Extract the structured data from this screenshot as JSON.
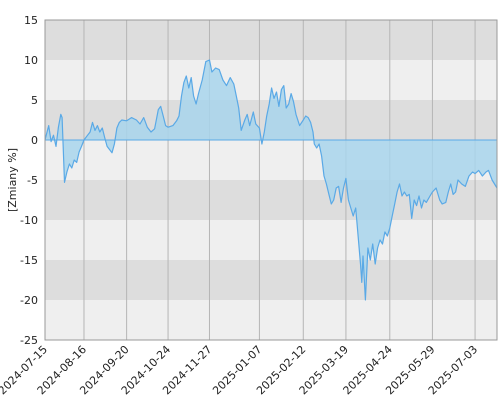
{
  "chart_data": {
    "type": "area",
    "title": "",
    "xlabel": "",
    "ylabel": "[Zmiany %]",
    "ylim": [
      -25,
      15
    ],
    "yticks": [
      15,
      10,
      5,
      0,
      -5,
      -10,
      -15,
      -20,
      -25
    ],
    "x_range": [
      "2024-07-15",
      "2025-07-21"
    ],
    "xticks": [
      "2024-07-15",
      "2024-08-16",
      "2024-09-20",
      "2024-10-24",
      "2024-11-27",
      "2025-01-07",
      "2025-02-12",
      "2025-03-19",
      "2025-04-24",
      "2025-05-29",
      "2025-07-03"
    ],
    "grid": true,
    "band_colors": [
      "#dddddd",
      "#efefef"
    ],
    "line_color": "#5aa9e6",
    "fill_color": "#a8d5ec",
    "series": [
      {
        "points": [
          [
            "2024-07-15",
            0.0
          ],
          [
            "2024-07-18",
            1.8
          ],
          [
            "2024-07-20",
            -0.2
          ],
          [
            "2024-07-22",
            0.6
          ],
          [
            "2024-07-24",
            -0.8
          ],
          [
            "2024-07-26",
            1.6
          ],
          [
            "2024-07-28",
            3.2
          ],
          [
            "2024-07-29",
            2.8
          ],
          [
            "2024-07-31",
            -5.3
          ],
          [
            "2024-08-02",
            -4.0
          ],
          [
            "2024-08-04",
            -3.0
          ],
          [
            "2024-08-06",
            -3.5
          ],
          [
            "2024-08-08",
            -2.5
          ],
          [
            "2024-08-10",
            -2.8
          ],
          [
            "2024-08-12",
            -1.5
          ],
          [
            "2024-08-14",
            -0.8
          ],
          [
            "2024-08-16",
            0.0
          ],
          [
            "2024-08-19",
            0.6
          ],
          [
            "2024-08-21",
            1.0
          ],
          [
            "2024-08-23",
            2.2
          ],
          [
            "2024-08-25",
            1.2
          ],
          [
            "2024-08-27",
            1.8
          ],
          [
            "2024-08-29",
            1.0
          ],
          [
            "2024-08-31",
            1.5
          ],
          [
            "2024-09-02",
            0.3
          ],
          [
            "2024-09-04",
            -0.8
          ],
          [
            "2024-09-06",
            -1.2
          ],
          [
            "2024-09-08",
            -1.6
          ],
          [
            "2024-09-10",
            -0.5
          ],
          [
            "2024-09-12",
            1.5
          ],
          [
            "2024-09-14",
            2.2
          ],
          [
            "2024-09-16",
            2.5
          ],
          [
            "2024-09-20",
            2.4
          ],
          [
            "2024-09-24",
            2.8
          ],
          [
            "2024-09-28",
            2.5
          ],
          [
            "2024-10-01",
            2.0
          ],
          [
            "2024-10-04",
            2.8
          ],
          [
            "2024-10-07",
            1.6
          ],
          [
            "2024-10-10",
            1.0
          ],
          [
            "2024-10-13",
            1.4
          ],
          [
            "2024-10-16",
            3.8
          ],
          [
            "2024-10-18",
            4.2
          ],
          [
            "2024-10-20",
            3.0
          ],
          [
            "2024-10-22",
            1.8
          ],
          [
            "2024-10-24",
            1.6
          ],
          [
            "2024-10-28",
            1.8
          ],
          [
            "2024-10-31",
            2.4
          ],
          [
            "2024-11-02",
            3.0
          ],
          [
            "2024-11-04",
            5.5
          ],
          [
            "2024-11-06",
            7.2
          ],
          [
            "2024-11-08",
            8.0
          ],
          [
            "2024-11-10",
            6.5
          ],
          [
            "2024-11-12",
            7.8
          ],
          [
            "2024-11-14",
            5.5
          ],
          [
            "2024-11-16",
            4.5
          ],
          [
            "2024-11-18",
            5.8
          ],
          [
            "2024-11-21",
            7.5
          ],
          [
            "2024-11-24",
            9.8
          ],
          [
            "2024-11-27",
            10.0
          ],
          [
            "2024-11-29",
            8.5
          ],
          [
            "2024-12-02",
            9.0
          ],
          [
            "2024-12-05",
            8.8
          ],
          [
            "2024-12-08",
            7.5
          ],
          [
            "2024-12-11",
            6.8
          ],
          [
            "2024-12-14",
            7.8
          ],
          [
            "2024-12-17",
            7.0
          ],
          [
            "2024-12-19",
            5.5
          ],
          [
            "2024-12-21",
            4.0
          ],
          [
            "2024-12-23",
            1.2
          ],
          [
            "2024-12-26",
            2.5
          ],
          [
            "2024-12-28",
            3.2
          ],
          [
            "2024-12-30",
            1.8
          ],
          [
            "2025-01-02",
            3.5
          ],
          [
            "2025-01-04",
            2.0
          ],
          [
            "2025-01-07",
            1.5
          ],
          [
            "2025-01-09",
            -0.5
          ],
          [
            "2025-01-11",
            1.0
          ],
          [
            "2025-01-13",
            3.0
          ],
          [
            "2025-01-15",
            4.5
          ],
          [
            "2025-01-17",
            6.5
          ],
          [
            "2025-01-19",
            5.2
          ],
          [
            "2025-01-21",
            6.0
          ],
          [
            "2025-01-23",
            4.2
          ],
          [
            "2025-01-25",
            6.3
          ],
          [
            "2025-01-27",
            6.8
          ],
          [
            "2025-01-29",
            4.0
          ],
          [
            "2025-01-31",
            4.5
          ],
          [
            "2025-02-02",
            5.8
          ],
          [
            "2025-02-04",
            4.8
          ],
          [
            "2025-02-06",
            3.2
          ],
          [
            "2025-02-09",
            1.8
          ],
          [
            "2025-02-12",
            2.5
          ],
          [
            "2025-02-14",
            3.0
          ],
          [
            "2025-02-16",
            2.8
          ],
          [
            "2025-02-18",
            2.2
          ],
          [
            "2025-02-20",
            1.0
          ],
          [
            "2025-02-21",
            -0.5
          ],
          [
            "2025-02-23",
            -1.0
          ],
          [
            "2025-02-25",
            -0.5
          ],
          [
            "2025-02-27",
            -2.0
          ],
          [
            "2025-03-01",
            -4.5
          ],
          [
            "2025-03-03",
            -5.5
          ],
          [
            "2025-03-05",
            -6.8
          ],
          [
            "2025-03-07",
            -8.0
          ],
          [
            "2025-03-09",
            -7.5
          ],
          [
            "2025-03-11",
            -6.0
          ],
          [
            "2025-03-13",
            -5.8
          ],
          [
            "2025-03-15",
            -7.8
          ],
          [
            "2025-03-17",
            -6.0
          ],
          [
            "2025-03-19",
            -4.8
          ],
          [
            "2025-03-21",
            -7.5
          ],
          [
            "2025-03-23",
            -8.5
          ],
          [
            "2025-03-25",
            -9.5
          ],
          [
            "2025-03-27",
            -8.5
          ],
          [
            "2025-03-29",
            -12.0
          ],
          [
            "2025-03-31",
            -15.5
          ],
          [
            "2025-04-01",
            -17.8
          ],
          [
            "2025-04-02",
            -14.5
          ],
          [
            "2025-04-04",
            -20.0
          ],
          [
            "2025-04-06",
            -13.5
          ],
          [
            "2025-04-08",
            -15.0
          ],
          [
            "2025-04-10",
            -13.0
          ],
          [
            "2025-04-12",
            -15.5
          ],
          [
            "2025-04-14",
            -13.5
          ],
          [
            "2025-04-16",
            -12.5
          ],
          [
            "2025-04-18",
            -13.0
          ],
          [
            "2025-04-20",
            -11.5
          ],
          [
            "2025-04-22",
            -12.0
          ],
          [
            "2025-04-24",
            -11.0
          ],
          [
            "2025-04-26",
            -9.5
          ],
          [
            "2025-04-28",
            -8.0
          ],
          [
            "2025-04-30",
            -6.5
          ],
          [
            "2025-05-02",
            -5.5
          ],
          [
            "2025-05-04",
            -7.0
          ],
          [
            "2025-05-06",
            -6.5
          ],
          [
            "2025-05-08",
            -7.0
          ],
          [
            "2025-05-10",
            -6.8
          ],
          [
            "2025-05-12",
            -9.8
          ],
          [
            "2025-05-14",
            -7.5
          ],
          [
            "2025-05-16",
            -8.2
          ],
          [
            "2025-05-18",
            -7.0
          ],
          [
            "2025-05-20",
            -8.5
          ],
          [
            "2025-05-22",
            -7.5
          ],
          [
            "2025-05-24",
            -7.8
          ],
          [
            "2025-05-27",
            -7.0
          ],
          [
            "2025-05-29",
            -6.5
          ],
          [
            "2025-06-01",
            -6.0
          ],
          [
            "2025-06-04",
            -7.5
          ],
          [
            "2025-06-06",
            -8.0
          ],
          [
            "2025-06-09",
            -7.8
          ],
          [
            "2025-06-11",
            -6.5
          ],
          [
            "2025-06-13",
            -5.5
          ],
          [
            "2025-06-15",
            -6.8
          ],
          [
            "2025-06-17",
            -6.5
          ],
          [
            "2025-06-19",
            -5.0
          ],
          [
            "2025-06-22",
            -5.5
          ],
          [
            "2025-06-25",
            -5.8
          ],
          [
            "2025-06-28",
            -4.5
          ],
          [
            "2025-07-01",
            -4.0
          ],
          [
            "2025-07-03",
            -4.2
          ],
          [
            "2025-07-06",
            -3.8
          ],
          [
            "2025-07-09",
            -4.5
          ],
          [
            "2025-07-12",
            -4.0
          ],
          [
            "2025-07-14",
            -3.8
          ],
          [
            "2025-07-17",
            -5.0
          ],
          [
            "2025-07-21",
            -6.0
          ]
        ]
      }
    ]
  }
}
